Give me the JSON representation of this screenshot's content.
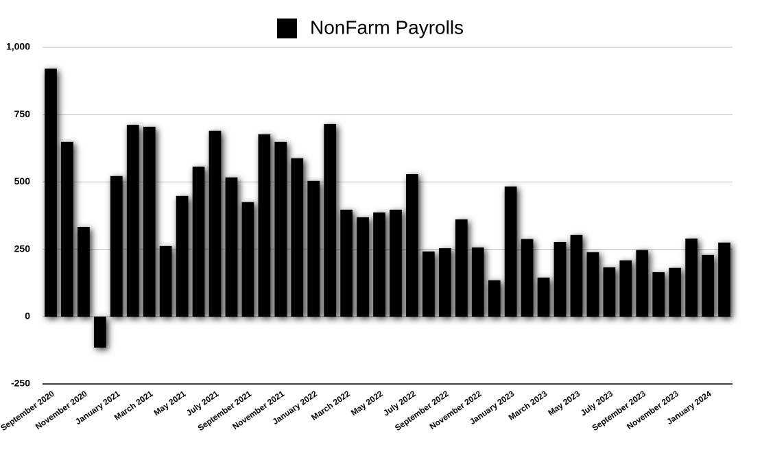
{
  "chart_data": {
    "type": "bar",
    "categories": [
      "September 2020",
      null,
      "November 2020",
      null,
      "January 2021",
      null,
      "March 2021",
      null,
      "May 2021",
      null,
      "July 2021",
      null,
      "September 2021",
      null,
      "November 2021",
      null,
      "January 2022",
      null,
      "March 2022",
      null,
      "May 2022",
      null,
      "July 2022",
      null,
      "September 2022",
      null,
      "November 2022",
      null,
      "January 2023",
      null,
      "March 2023",
      null,
      "May 2023",
      null,
      "July 2023",
      null,
      "September 2023",
      null,
      "November 2023",
      null,
      "January 2024",
      null
    ],
    "series": [
      {
        "name": "NonFarm Payrolls",
        "color": "#000000",
        "values": [
          921,
          649,
          333,
          -115,
          522,
          712,
          705,
          262,
          448,
          557,
          690,
          517,
          425,
          677,
          649,
          588,
          504,
          715,
          397,
          369,
          387,
          397,
          529,
          242,
          254,
          361,
          257,
          135,
          483,
          288,
          145,
          277,
          303,
          239,
          183,
          209,
          247,
          165,
          181,
          290,
          229,
          275
        ]
      }
    ],
    "ylim": [
      -250,
      1000
    ],
    "yticks": [
      -250,
      0,
      250,
      500,
      750,
      {
        "value": 1000,
        "label": "1,000"
      }
    ],
    "grid": true,
    "legend": "top"
  }
}
